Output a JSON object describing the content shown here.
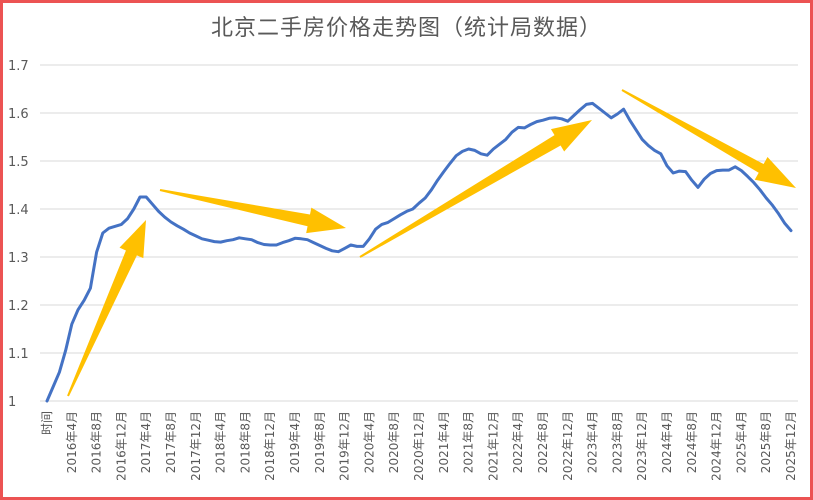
{
  "chart_data": {
    "type": "line",
    "title": "北京二手房价格走势图（统计局数据）",
    "xlabel": "",
    "ylabel": "",
    "ylim": [
      1,
      1.7
    ],
    "yticks": [
      "1",
      "1.1",
      "1.2",
      "1.3",
      "1.4",
      "1.5",
      "1.6",
      "1.7"
    ],
    "grid": true,
    "legend": "none",
    "tick_every": 4,
    "tick_labels": [
      "时间",
      "2016年4月",
      "2016年8月",
      "2016年12月",
      "2017年4月",
      "2017年8月",
      "2017年12月",
      "2018年4月",
      "2018年8月",
      "2018年12月",
      "2019年4月",
      "2019年8月",
      "2019年12月",
      "2020年4月",
      "2020年8月",
      "2020年12月",
      "2021年4月",
      "2021年8月",
      "2021年12月",
      "2022年4月",
      "2022年8月",
      "2022年12月",
      "2023年4月",
      "2023年8月",
      "2023年12月",
      "2024年4月",
      "2024年8月",
      "2024年12月",
      "2025年4月",
      "2025年8月",
      "2025年12月"
    ],
    "series": [
      {
        "color": "#4472c4",
        "values": [
          1.0,
          1.03,
          1.06,
          1.105,
          1.16,
          1.19,
          1.21,
          1.235,
          1.31,
          1.35,
          1.36,
          1.364,
          1.368,
          1.38,
          1.4,
          1.425,
          1.425,
          1.41,
          1.395,
          1.383,
          1.373,
          1.365,
          1.358,
          1.35,
          1.344,
          1.338,
          1.335,
          1.332,
          1.331,
          1.334,
          1.336,
          1.34,
          1.338,
          1.336,
          1.33,
          1.326,
          1.325,
          1.325,
          1.33,
          1.334,
          1.339,
          1.338,
          1.336,
          1.33,
          1.324,
          1.318,
          1.313,
          1.311,
          1.318,
          1.325,
          1.322,
          1.322,
          1.338,
          1.358,
          1.368,
          1.372,
          1.38,
          1.388,
          1.395,
          1.4,
          1.412,
          1.423,
          1.44,
          1.46,
          1.478,
          1.495,
          1.511,
          1.52,
          1.525,
          1.522,
          1.515,
          1.512,
          1.525,
          1.535,
          1.545,
          1.56,
          1.57,
          1.569,
          1.576,
          1.582,
          1.585,
          1.589,
          1.59,
          1.588,
          1.583,
          1.595,
          1.607,
          1.618,
          1.62,
          1.61,
          1.6,
          1.59,
          1.598,
          1.608,
          1.585,
          1.565,
          1.545,
          1.532,
          1.522,
          1.515,
          1.49,
          1.475,
          1.479,
          1.478,
          1.46,
          1.445,
          1.462,
          1.474,
          1.48,
          1.481,
          1.481,
          1.488,
          1.48,
          1.468,
          1.455,
          1.44,
          1.423,
          1.408,
          1.39,
          1.37,
          1.355
        ]
      }
    ],
    "annotations": {
      "arrow_color": "#ffc000",
      "arrows": [
        "up",
        "down-right",
        "up-right",
        "down-right"
      ]
    },
    "border_color": "#ec5353"
  }
}
